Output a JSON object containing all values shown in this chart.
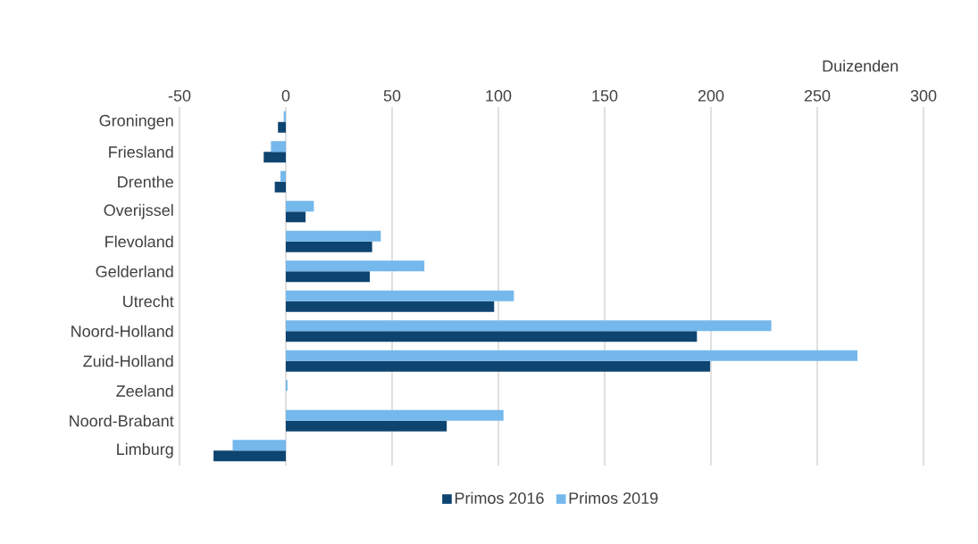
{
  "chart_data": {
    "type": "bar",
    "orientation": "horizontal",
    "xlabel": "Duizenden",
    "categories": [
      "Groningen",
      "Friesland",
      "Drenthe",
      "Overijssel",
      "Flevoland",
      "Gelderland",
      "Utrecht",
      "Noord-Holland",
      "Zuid-Holland",
      "Zeeland",
      "Noord-Brabant",
      "Limburg"
    ],
    "series": [
      {
        "name": "Primos 2016",
        "color": "#0e4470",
        "values": [
          -3.7,
          -10.4,
          -5.2,
          9.3,
          40.6,
          39.5,
          98.0,
          193.4,
          199.6,
          0,
          75.7,
          -34.0
        ]
      },
      {
        "name": "Primos 2019",
        "color": "#74b8ec",
        "values": [
          -1.0,
          -7.0,
          -2.5,
          13.2,
          44.7,
          65.2,
          107.3,
          228.4,
          268.9,
          0.8,
          102.4,
          -25.0
        ]
      }
    ],
    "xlim": [
      -50,
      300
    ],
    "xticks": [
      -50,
      0,
      50,
      100,
      150,
      200,
      250,
      300
    ],
    "grid": "x",
    "legend": "bottom"
  }
}
